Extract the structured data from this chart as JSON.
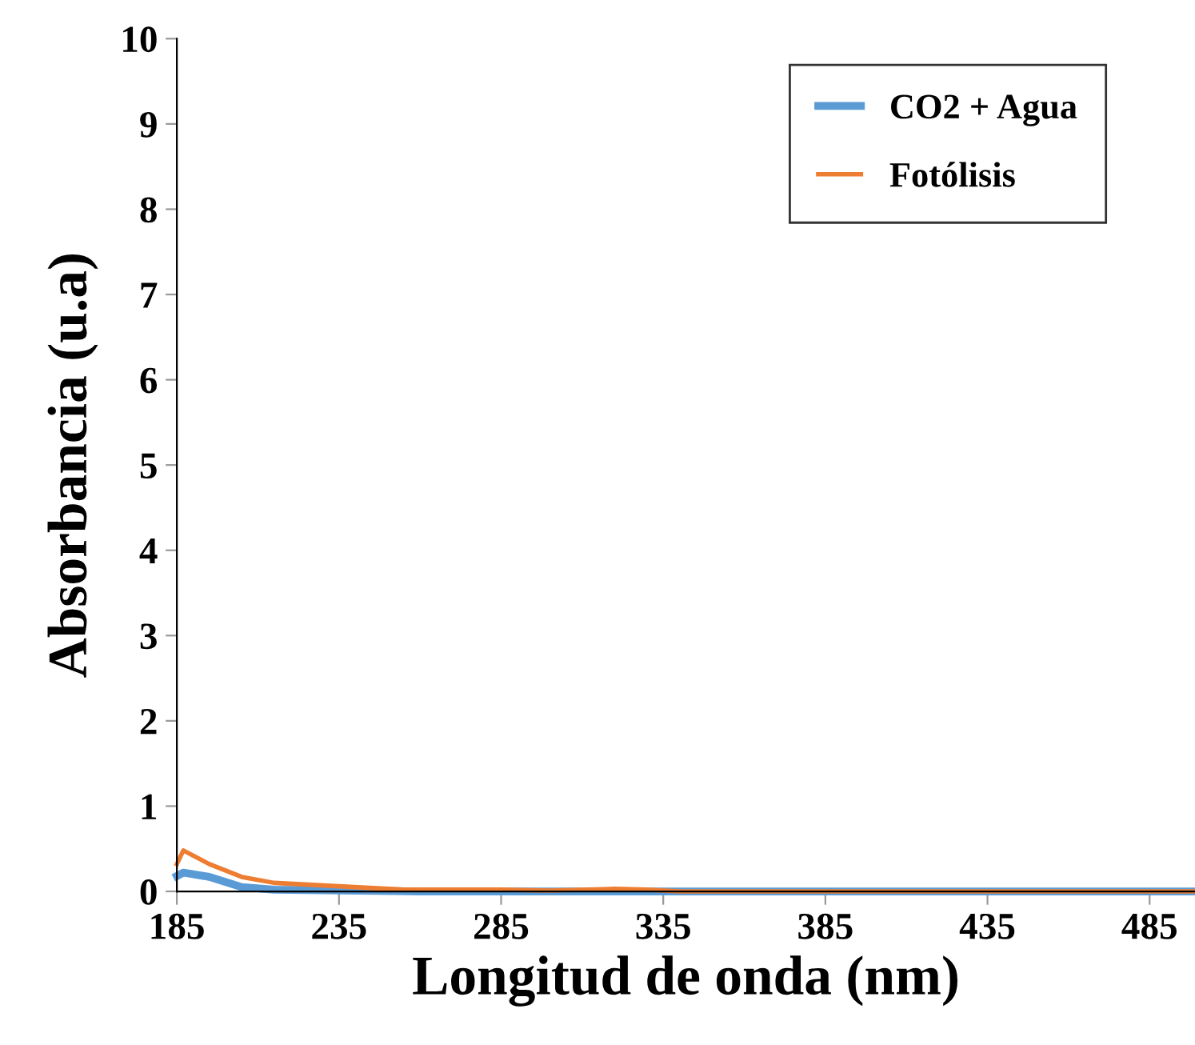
{
  "chart_data": {
    "type": "line",
    "xlabel": "Longitud de onda (nm)",
    "ylabel": "Absorbancia (u.a)",
    "xlim": [
      185,
      499
    ],
    "xticks": [
      185,
      235,
      285,
      335,
      385,
      435,
      485
    ],
    "ylim": [
      0,
      10
    ],
    "yticks": [
      0,
      1,
      2,
      3,
      4,
      5,
      6,
      7,
      8,
      9,
      10
    ],
    "grid": false,
    "legend": "top right",
    "marker": "none",
    "line_style": "solid",
    "series": [
      {
        "name": "CO2 + Agua",
        "color": "#5b9bd5",
        "x": [
          185,
          187,
          195,
          205,
          215,
          235,
          260,
          300,
          400,
          499
        ],
        "values": [
          0.18,
          0.22,
          0.17,
          0.05,
          0.02,
          0.01,
          0.0,
          0.0,
          0.0,
          0.0
        ]
      },
      {
        "name": "Fotólisis",
        "color": "#ed7d31",
        "x": [
          185,
          187,
          195,
          205,
          215,
          235,
          255,
          285,
          300,
          320,
          330,
          340,
          400,
          499
        ],
        "values": [
          0.32,
          0.48,
          0.32,
          0.17,
          0.1,
          0.06,
          0.02,
          0.02,
          0.01,
          0.03,
          0.02,
          0.0,
          0.0,
          0.0
        ]
      }
    ]
  }
}
